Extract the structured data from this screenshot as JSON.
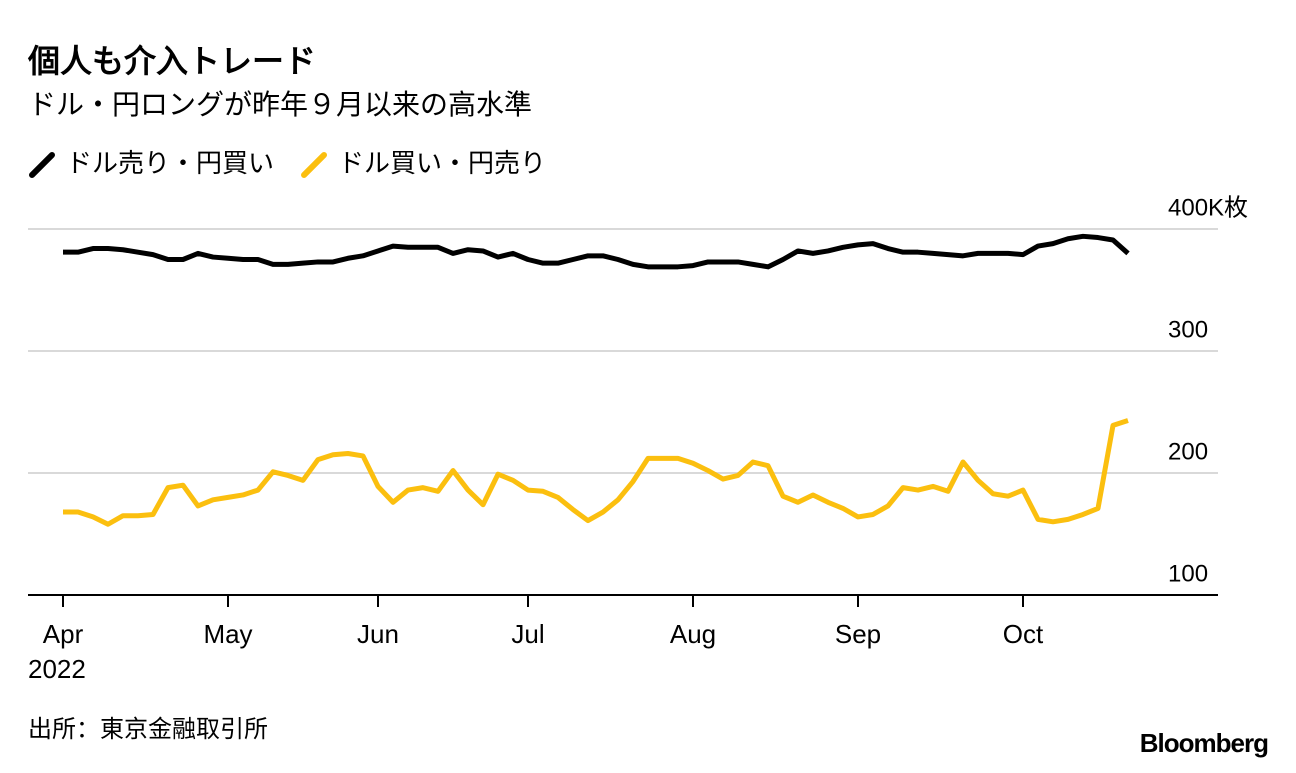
{
  "chart_data": {
    "type": "line",
    "title": "個人も介入トレード",
    "subtitle": "ドル・円ロングが昨年９月以来の高水準",
    "source": "出所：東京金融取引所",
    "brand": "Bloomberg",
    "year_label": "2022",
    "categories": [
      "Apr",
      null,
      null,
      null,
      null,
      null,
      null,
      null,
      null,
      null,
      null,
      "May",
      null,
      null,
      null,
      null,
      null,
      null,
      null,
      null,
      null,
      "Jun",
      null,
      null,
      null,
      null,
      null,
      null,
      null,
      null,
      null,
      "Jul",
      null,
      null,
      null,
      null,
      null,
      null,
      null,
      null,
      null,
      null,
      "Aug",
      null,
      null,
      null,
      null,
      null,
      null,
      null,
      null,
      null,
      null,
      "Sep",
      null,
      null,
      null,
      null,
      null,
      null,
      null,
      null,
      null,
      null,
      "Oct",
      null,
      null,
      null,
      null,
      null,
      null,
      null
    ],
    "ylim": [
      100,
      400
    ],
    "yticks": [
      100,
      200,
      300,
      {
        "value": 400,
        "label": "400K枚"
      }
    ],
    "grid": true,
    "series": [
      {
        "name": "ドル売り・円買い",
        "color": "#000000",
        "values": [
          381,
          381,
          384,
          384,
          383,
          381,
          379,
          375,
          375,
          380,
          377,
          376,
          375,
          375,
          371,
          371,
          372,
          373,
          373,
          376,
          378,
          382,
          386,
          385,
          385,
          385,
          380,
          383,
          382,
          377,
          380,
          375,
          372,
          372,
          375,
          378,
          378,
          375,
          371,
          369,
          369,
          369,
          370,
          373,
          373,
          373,
          371,
          369,
          375,
          382,
          380,
          382,
          385,
          387,
          388,
          384,
          381,
          381,
          380,
          379,
          378,
          380,
          380,
          380,
          379,
          386,
          388,
          392,
          394,
          393,
          391,
          380
        ]
      },
      {
        "name": "ドル買い・円売り",
        "color": "#fbbf0f",
        "values": [
          168,
          168,
          164,
          158,
          165,
          165,
          166,
          188,
          190,
          173,
          178,
          180,
          182,
          186,
          201,
          198,
          194,
          211,
          215,
          216,
          214,
          189,
          176,
          186,
          188,
          185,
          202,
          186,
          174,
          199,
          194,
          186,
          185,
          180,
          170,
          161,
          168,
          178,
          193,
          212,
          212,
          212,
          208,
          202,
          195,
          198,
          209,
          206,
          181,
          176,
          182,
          176,
          171,
          164,
          166,
          173,
          188,
          186,
          189,
          185,
          209,
          194,
          183,
          181,
          186,
          162,
          160,
          162,
          166,
          171,
          239,
          243
        ]
      }
    ]
  }
}
